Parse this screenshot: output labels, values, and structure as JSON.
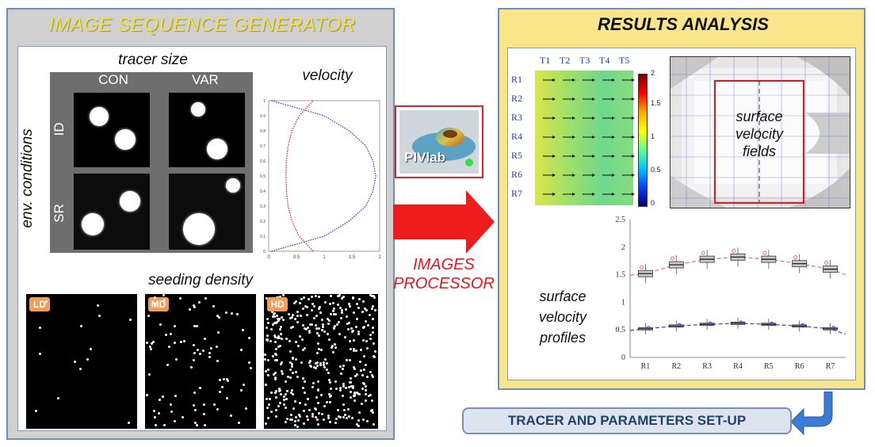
{
  "generator": {
    "title": "IMAGE SEQUENCE GENERATOR",
    "tracer_size": {
      "heading": "tracer size",
      "columns": [
        "CON",
        "VAR"
      ]
    },
    "env_conditions": {
      "heading": "env. conditions",
      "rows": [
        "ID",
        "SR"
      ]
    },
    "velocity": {
      "heading": "velocity",
      "chart_data": {
        "type": "line",
        "series": [
          {
            "x": [
              0.8,
              0.55,
              0.42,
              0.35,
              0.32,
              0.31,
              0.32,
              0.35,
              0.42,
              0.55,
              0.8
            ],
            "y": [
              0.0,
              0.1,
              0.2,
              0.3,
              0.4,
              0.5,
              0.6,
              0.7,
              0.8,
              0.9,
              1.0
            ],
            "color": "#e8141b"
          },
          {
            "x": [
              0.05,
              1.0,
              1.45,
              1.75,
              1.88,
              1.93,
              1.88,
              1.75,
              1.45,
              1.0,
              0.05
            ],
            "y": [
              0.0,
              0.1,
              0.2,
              0.3,
              0.4,
              0.5,
              0.6,
              0.7,
              0.8,
              0.9,
              1.0
            ],
            "color": "#1f2fd6"
          }
        ],
        "xlim": [
          0,
          2
        ],
        "ylim": [
          0,
          1
        ],
        "xticks": [
          "0",
          "0.5",
          "1",
          "1.5",
          "2"
        ],
        "yticks": [
          "0",
          "0.1",
          "0.2",
          "0.3",
          "0.4",
          "0.5",
          "0.6",
          "0.7",
          "0.8",
          "0.9",
          "1"
        ]
      }
    },
    "seeding_density": {
      "heading": "seeding density",
      "levels": [
        "LD",
        "MD",
        "HD"
      ]
    }
  },
  "processor": {
    "logo_text": "PIVlab",
    "label_line1": "IMAGES",
    "label_line2": "PROCESSOR"
  },
  "results": {
    "title": "RESULTS ANALYSIS",
    "field_map": {
      "columns": [
        "T1",
        "T2",
        "T3",
        "T4",
        "T5"
      ],
      "rows": [
        "R1",
        "R2",
        "R3",
        "R4",
        "R5",
        "R6",
        "R7"
      ],
      "colorbar_ticks": [
        "2",
        "1.5",
        "1",
        "0.5",
        "0"
      ]
    },
    "surface_fields_label": [
      "surface",
      "velocity",
      "fields"
    ],
    "profiles_label": [
      "surface",
      "velocity",
      "profiles"
    ],
    "chart_data": {
      "type": "box",
      "categories": [
        "R1",
        "R2",
        "R3",
        "R4",
        "R5",
        "R6",
        "R7"
      ],
      "ylim": [
        0,
        2.5
      ],
      "yticks": [
        "0",
        "0.5",
        "1",
        "1.5",
        "2",
        "2.5"
      ],
      "series": [
        {
          "values": [
            1.52,
            1.68,
            1.78,
            1.82,
            1.78,
            1.7,
            1.6
          ],
          "color": "#e87070"
        },
        {
          "values": [
            0.52,
            0.57,
            0.6,
            0.62,
            0.6,
            0.57,
            0.52
          ],
          "color": "#4040d0"
        }
      ]
    }
  },
  "setup": {
    "label": "TRACER AND PARAMETERS SET-UP"
  }
}
